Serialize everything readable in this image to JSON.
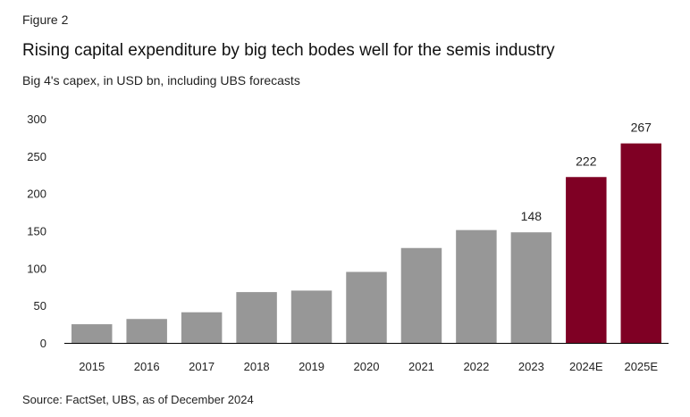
{
  "figure_label": "Figure 2",
  "source": "Source: FactSet, UBS, as of December 2024",
  "chart_data": {
    "type": "bar",
    "title": "Rising capital expenditure by big tech bodes well for the semis industry",
    "subtitle": "Big 4's capex, in USD bn, including UBS forecasts",
    "xlabel": "",
    "ylabel": "",
    "categories": [
      "2015",
      "2016",
      "2017",
      "2018",
      "2019",
      "2020",
      "2021",
      "2022",
      "2023",
      "2024E",
      "2025E"
    ],
    "values": [
      25,
      32,
      41,
      68,
      70,
      95,
      127,
      151,
      148,
      222,
      267
    ],
    "ylim": [
      0,
      300
    ],
    "yticks": [
      0,
      50,
      100,
      150,
      200,
      250,
      300
    ],
    "data_labels": {
      "8": "148",
      "9": "222",
      "10": "267"
    },
    "grid": false,
    "colors": {
      "actual": "#979797",
      "forecast": "#7f0024"
    }
  }
}
